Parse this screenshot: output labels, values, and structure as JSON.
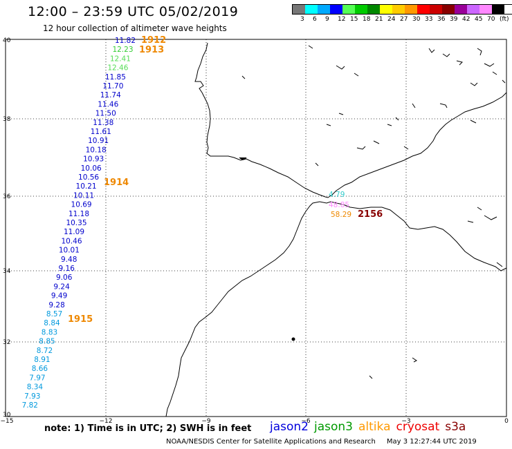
{
  "header": {
    "title": "12:00 – 23:59 UTC 05/02/2019",
    "subtitle": "12 hour collection of altimeter wave heights"
  },
  "color_scale": {
    "colors": [
      "#777777",
      "#00ffff",
      "#00aaff",
      "#0000ff",
      "#55ff55",
      "#00cc00",
      "#008800",
      "#ffff00",
      "#ffcc00",
      "#ff9900",
      "#ff0000",
      "#cc0000",
      "#880000",
      "#990099",
      "#cc66ff",
      "#ff88ff",
      "#000000"
    ],
    "labels": [
      "3",
      "6",
      "9",
      "12",
      "15",
      "18",
      "21",
      "24",
      "27",
      "30",
      "33",
      "36",
      "39",
      "42",
      "45",
      "70",
      "(ft)"
    ]
  },
  "axes": {
    "lat_labels": [
      "40",
      "38",
      "36",
      "34",
      "32",
      "30"
    ],
    "lon_labels": [
      "−15",
      "−12",
      "−9",
      "−6",
      "−3",
      "0"
    ]
  },
  "pass_labels": [
    {
      "id": "1912",
      "text": "1912",
      "color": "#ee8800"
    },
    {
      "id": "1913",
      "text": "1913",
      "color": "#ee8800"
    },
    {
      "id": "1914",
      "text": "1914",
      "color": "#ee8800"
    },
    {
      "id": "1915",
      "text": "1915",
      "color": "#ee8800"
    },
    {
      "id": "2156",
      "text": "2156",
      "color": "#880000"
    }
  ],
  "track_values": [
    {
      "v": "11.82",
      "c": "#0000cc"
    },
    {
      "v": "12.23",
      "c": "#33cc33"
    },
    {
      "v": "12.41",
      "c": "#55dd55"
    },
    {
      "v": "12.46",
      "c": "#55dd55"
    },
    {
      "v": "11.85",
      "c": "#0000cc"
    },
    {
      "v": "11.70",
      "c": "#0000cc"
    },
    {
      "v": "11.74",
      "c": "#0000cc"
    },
    {
      "v": "11.46",
      "c": "#0000cc"
    },
    {
      "v": "11.50",
      "c": "#0000cc"
    },
    {
      "v": "11.38",
      "c": "#0000cc"
    },
    {
      "v": "11.61",
      "c": "#0000cc"
    },
    {
      "v": "10.91",
      "c": "#0000cc"
    },
    {
      "v": "10.18",
      "c": "#0000cc"
    },
    {
      "v": "10.93",
      "c": "#0000cc"
    },
    {
      "v": "10.06",
      "c": "#0000cc"
    },
    {
      "v": "10.56",
      "c": "#0000cc"
    },
    {
      "v": "10.21",
      "c": "#0000cc"
    },
    {
      "v": "10.11",
      "c": "#0000cc"
    },
    {
      "v": "10.69",
      "c": "#0000cc"
    },
    {
      "v": "11.18",
      "c": "#0000cc"
    },
    {
      "v": "10.35",
      "c": "#0000cc"
    },
    {
      "v": "11.09",
      "c": "#0000cc"
    },
    {
      "v": "10.46",
      "c": "#0000cc"
    },
    {
      "v": "10.01",
      "c": "#0000cc"
    },
    {
      "v": "9.48",
      "c": "#0000cc"
    },
    {
      "v": "9.16",
      "c": "#0000cc"
    },
    {
      "v": "9.06",
      "c": "#0000cc"
    },
    {
      "v": "9.24",
      "c": "#0000cc"
    },
    {
      "v": "9.49",
      "c": "#0000cc"
    },
    {
      "v": "9.28",
      "c": "#0000cc"
    },
    {
      "v": "8.57",
      "c": "#0099dd"
    },
    {
      "v": "8.84",
      "c": "#0099dd"
    },
    {
      "v": "8.83",
      "c": "#0099dd"
    },
    {
      "v": "8.85",
      "c": "#0099dd"
    },
    {
      "v": "8.72",
      "c": "#0099dd"
    },
    {
      "v": "8.91",
      "c": "#0099dd"
    },
    {
      "v": "8.66",
      "c": "#0099dd"
    },
    {
      "v": "7.97",
      "c": "#0099dd"
    },
    {
      "v": "8.34",
      "c": "#0099dd"
    },
    {
      "v": "7.93",
      "c": "#0099dd"
    },
    {
      "v": "7.82",
      "c": "#0099dd"
    }
  ],
  "strait_values": [
    {
      "v": "4.79",
      "c": "#33cccc"
    },
    {
      "v": "48.85",
      "c": "#ff88ff"
    },
    {
      "v": "58.29",
      "c": "#ee8800"
    }
  ],
  "note": "note:  1) Time is in UTC;  2) SWH is in feet",
  "legend": [
    {
      "name": "jason2",
      "color": "#0000dd"
    },
    {
      "name": "jason3",
      "color": "#009900"
    },
    {
      "name": "altika",
      "color": "#ff9900"
    },
    {
      "name": "cryosat",
      "color": "#ee0000"
    },
    {
      "name": "s3a",
      "color": "#880000"
    }
  ],
  "footer": {
    "credit": "NOAA/NESDIS Center for Satellite Applications and Research",
    "timestamp": "May  3 12:27:44 UTC 2019"
  }
}
